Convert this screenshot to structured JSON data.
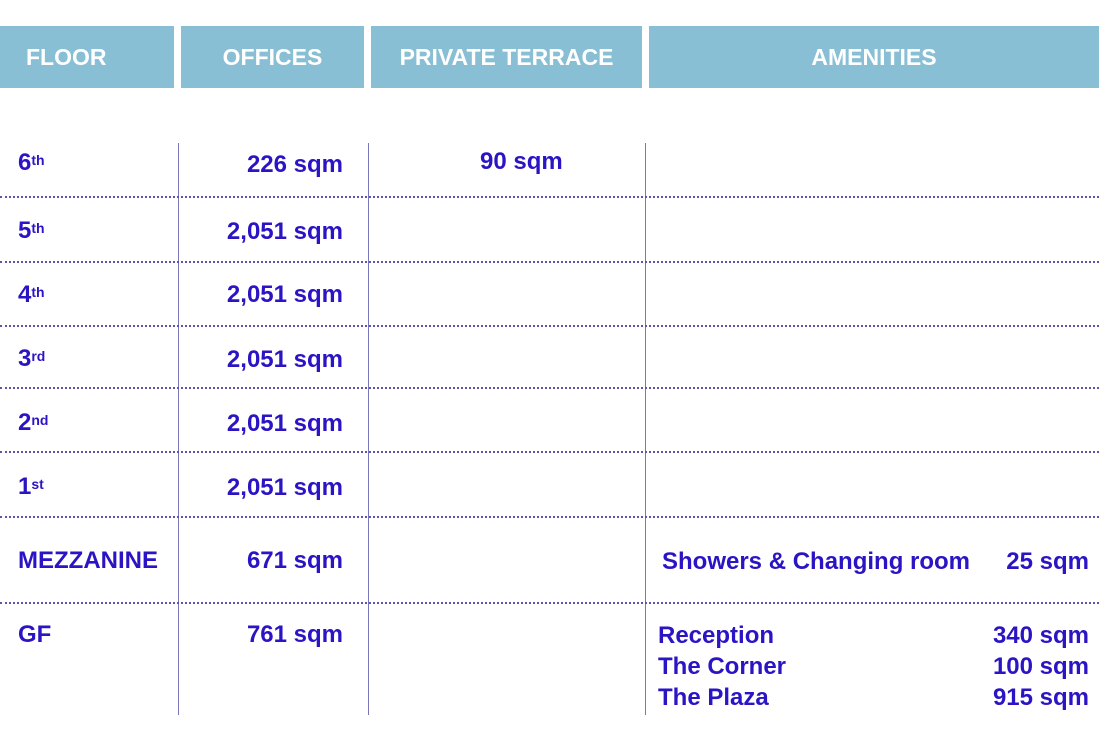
{
  "header": {
    "floor": "FLOOR",
    "offices": "OFFICES",
    "terrace": "PRIVATE TERRACE",
    "amenities": "AMENITIES"
  },
  "colors": {
    "header_bg": "#88bfd4",
    "text": "#2a14c4"
  },
  "rows": [
    {
      "floor": "6",
      "sup": "th",
      "offices": "226 sqm",
      "terrace": "90 sqm"
    },
    {
      "floor": "5",
      "sup": "th",
      "offices": "2,051 sqm"
    },
    {
      "floor": "4",
      "sup": "th",
      "offices": "2,051 sqm"
    },
    {
      "floor": "3",
      "sup": "rd",
      "offices": "2,051 sqm"
    },
    {
      "floor": "2",
      "sup": "nd",
      "offices": "2,051 sqm"
    },
    {
      "floor": "1",
      "sup": "st",
      "offices": "2,051 sqm"
    },
    {
      "floor": "MEZZANINE",
      "sup": "",
      "offices": "671 sqm",
      "amenities": [
        {
          "name": "Showers & Changing room",
          "area": "25 sqm"
        }
      ]
    },
    {
      "floor": "GF",
      "sup": "",
      "offices": "761 sqm",
      "amenities": [
        {
          "name": "Reception",
          "area": "340 sqm"
        },
        {
          "name": "The Corner",
          "area": "100 sqm"
        },
        {
          "name": "The Plaza",
          "area": "915 sqm"
        }
      ]
    }
  ]
}
